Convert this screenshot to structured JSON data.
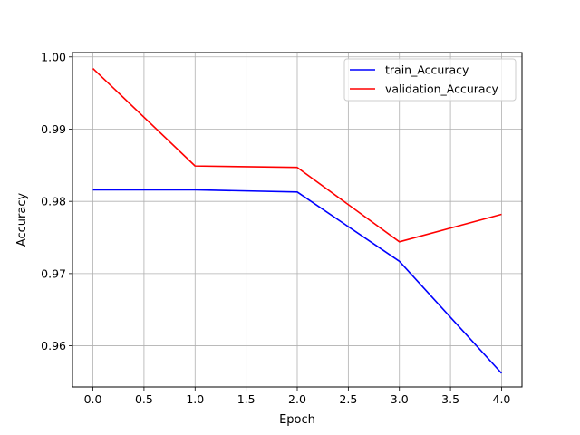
{
  "chart_data": {
    "type": "line",
    "title": "",
    "xlabel": "Epoch",
    "ylabel": "Accuracy",
    "x": [
      0,
      1,
      2,
      3,
      4
    ],
    "xlim": [
      -0.2,
      4.2
    ],
    "ylim": [
      0.9543,
      1.0006
    ],
    "xticks": [
      0.0,
      0.5,
      1.0,
      1.5,
      2.0,
      2.5,
      3.0,
      3.5,
      4.0
    ],
    "xtick_labels": [
      "0.0",
      "0.5",
      "1.0",
      "1.5",
      "2.0",
      "2.5",
      "3.0",
      "3.5",
      "4.0"
    ],
    "yticks": [
      0.96,
      0.97,
      0.98,
      0.99,
      1.0
    ],
    "ytick_labels": [
      "0.96",
      "0.97",
      "0.98",
      "0.99",
      "1.00"
    ],
    "grid": true,
    "legend_position": "top-right",
    "series": [
      {
        "name": "train_Accuracy",
        "color": "#0000ff",
        "values": [
          0.9816,
          0.9816,
          0.9813,
          0.9717,
          0.9562
        ]
      },
      {
        "name": "validation_Accuracy",
        "color": "#ff0000",
        "values": [
          0.9984,
          0.9849,
          0.9847,
          0.9744,
          0.9782
        ]
      }
    ]
  }
}
